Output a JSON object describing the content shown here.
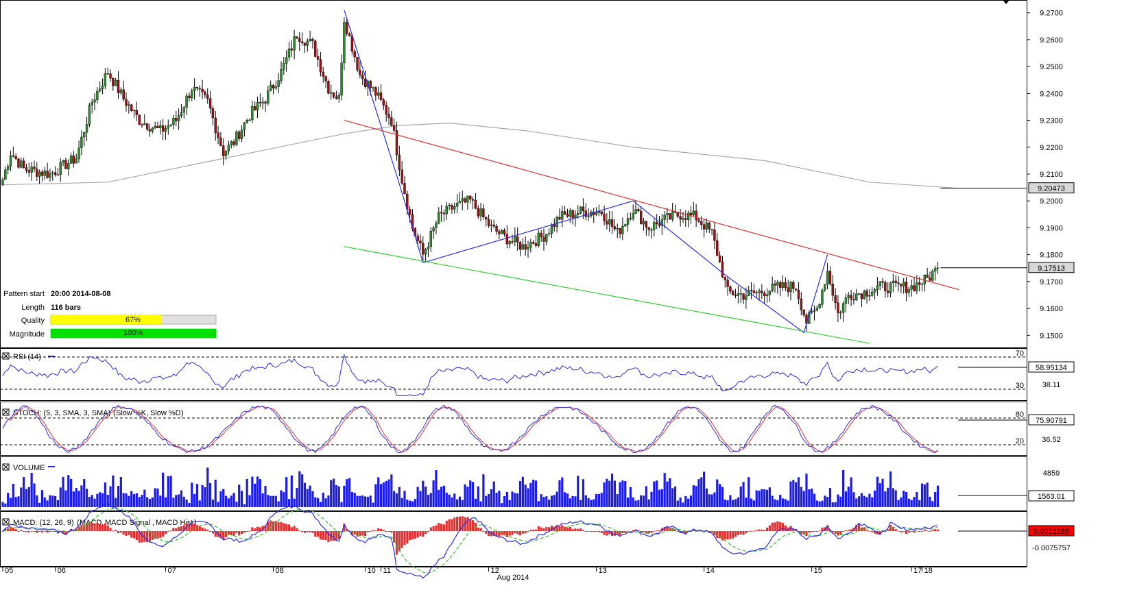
{
  "colors": {
    "bull": "#2e8b2e",
    "bear": "#a01010",
    "pattern_line": "#2a2af0",
    "resistance": "#e03030",
    "support": "#30d030",
    "sma": "#a8a8a8",
    "rsi": "#2a2af0",
    "stoch_k": "#2a2af0",
    "stoch_d": "#e03030",
    "volume": "#1a1af0",
    "macd": "#2a2af0",
    "macd_signal": "#30c030",
    "macd_hist": "#e03030",
    "quality_fill": "#ffff00",
    "magnitude_fill": "#00e000"
  },
  "pattern_info": {
    "start_label": "Pattern start",
    "start_value": "20:00 2014-08-08",
    "length_label": "Length",
    "length_value": "116 bars",
    "quality_label": "Quality",
    "quality_value": "67%",
    "quality_fraction": 0.67,
    "magnitude_label": "Magnitude",
    "magnitude_value": "100%",
    "magnitude_fraction": 1.0
  },
  "x_axis": {
    "ticks": [
      "05",
      "06",
      "07",
      "08",
      "10",
      "11",
      "12",
      "13",
      "14",
      "15",
      "17",
      "18"
    ],
    "month_label": "Aug 2014"
  },
  "chart_data": [
    {
      "type": "candlestick",
      "name": "price",
      "ylim": [
        9.146,
        9.274
      ],
      "y_ticks": [
        "9.2700",
        "9.2600",
        "9.2500",
        "9.2400",
        "9.2300",
        "9.2200",
        "9.2100",
        "9.2000",
        "9.1900",
        "9.1800",
        "9.1700",
        "9.1600",
        "9.1500"
      ],
      "current_tags": [
        "9.20473",
        "9.17513"
      ],
      "sma_value": 9.20473,
      "last_close": 9.17513,
      "sma_path": [
        [
          0,
          9.206
        ],
        [
          40,
          9.207
        ],
        [
          80,
          9.215
        ],
        [
          130,
          9.225
        ],
        [
          150,
          9.228
        ],
        [
          170,
          9.229
        ],
        [
          200,
          9.226
        ],
        [
          240,
          9.22
        ],
        [
          290,
          9.215
        ],
        [
          330,
          9.207
        ],
        [
          364,
          9.2047
        ]
      ],
      "pattern_zigzag": [
        [
          130,
          9.271
        ],
        [
          150,
          9.2095
        ],
        [
          160,
          9.177
        ],
        [
          240,
          9.2
        ],
        [
          275,
          9.1725
        ],
        [
          305,
          9.151
        ],
        [
          314,
          9.18
        ]
      ],
      "resistance_line": [
        [
          130,
          9.23
        ],
        [
          364,
          9.167
        ]
      ],
      "support_line": [
        [
          130,
          9.183
        ],
        [
          330,
          9.147
        ]
      ]
    },
    {
      "type": "line",
      "name": "RSI (14)",
      "title": "RSI (14)",
      "ylim": [
        20,
        75
      ],
      "levels": [
        "70",
        "30"
      ],
      "value_tag": "58.95134",
      "second_tag": "38.11"
    },
    {
      "type": "line",
      "name": "STOCH",
      "title": "STOCH: (5, 3, SMA, 3, SMA)",
      "legend": [
        "Slow %K",
        "Slow %D"
      ],
      "ylim": [
        0,
        100
      ],
      "levels": [
        "80",
        "20"
      ],
      "value_tag": "75.90791",
      "second_tag": "36.52"
    },
    {
      "type": "bar",
      "name": "VOLUME",
      "title": "VOLUME",
      "y_tick": "4859",
      "value_tag": "1563.01"
    },
    {
      "type": "line",
      "name": "MACD",
      "title": "MACD: (12, 26, 9)",
      "legend": [
        "MACD",
        "MACD Signal",
        "MACD Hist"
      ],
      "value_tag": "0.0012185",
      "second_tag": "-0.0075757"
    }
  ]
}
